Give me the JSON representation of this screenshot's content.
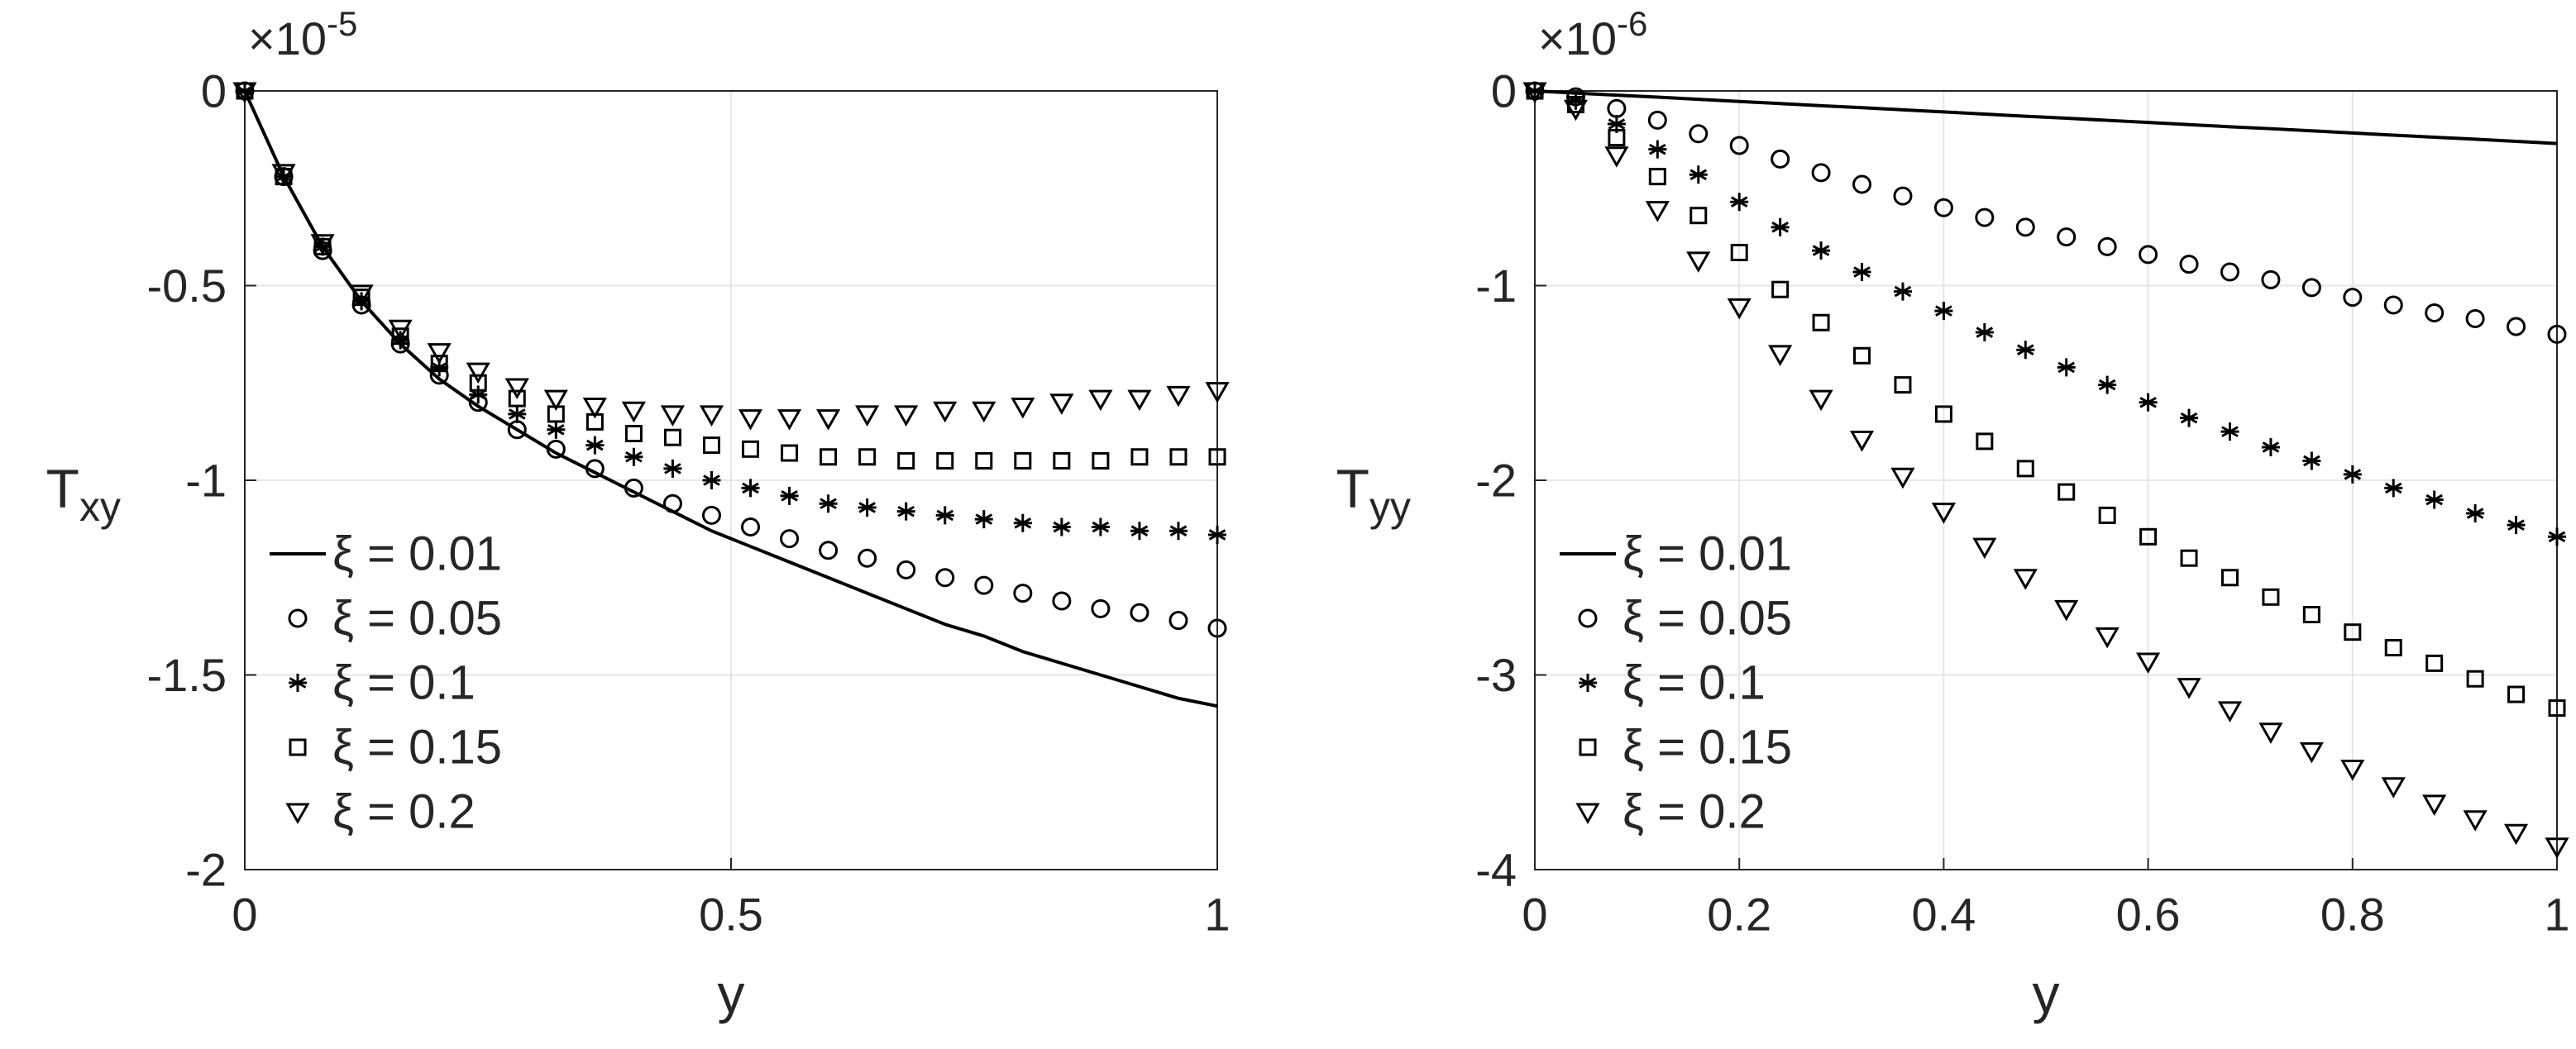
{
  "chart_data": [
    {
      "type": "scatter",
      "xlabel": "y",
      "ylabel": {
        "main": "T",
        "sub": "xy"
      },
      "multiplier": {
        "base": "×10",
        "exponent": "-5"
      },
      "xlim": [
        0,
        1
      ],
      "ylim": [
        -2,
        0
      ],
      "xticks": [
        0,
        0.5,
        1
      ],
      "yticks": [
        -2,
        -1.5,
        -1,
        -0.5,
        0
      ],
      "grid": true,
      "legend": "lower left",
      "x": [
        0,
        0.04,
        0.08,
        0.12,
        0.16,
        0.2,
        0.24,
        0.28,
        0.32,
        0.36,
        0.4,
        0.44,
        0.48,
        0.52,
        0.56,
        0.6,
        0.64,
        0.68,
        0.72,
        0.76,
        0.8,
        0.84,
        0.88,
        0.92,
        0.96,
        1
      ],
      "series": [
        {
          "name": "ξ = 0.01",
          "marker": "line",
          "color": "#000000",
          "values": [
            0,
            -0.22,
            -0.4,
            -0.54,
            -0.65,
            -0.74,
            -0.81,
            -0.87,
            -0.93,
            -0.98,
            -1.03,
            -1.08,
            -1.13,
            -1.17,
            -1.21,
            -1.25,
            -1.29,
            -1.33,
            -1.37,
            -1.4,
            -1.44,
            -1.47,
            -1.5,
            -1.53,
            -1.56,
            -1.58
          ]
        },
        {
          "name": "ξ = 0.05",
          "marker": "circle",
          "color": "#000000",
          "values": [
            0,
            -0.22,
            -0.41,
            -0.55,
            -0.65,
            -0.73,
            -0.8,
            -0.87,
            -0.92,
            -0.97,
            -1.02,
            -1.06,
            -1.09,
            -1.12,
            -1.15,
            -1.18,
            -1.2,
            -1.23,
            -1.25,
            -1.27,
            -1.29,
            -1.31,
            -1.33,
            -1.34,
            -1.36,
            -1.38
          ]
        },
        {
          "name": "ξ = 0.1",
          "marker": "star",
          "color": "#000000",
          "values": [
            0,
            -0.22,
            -0.4,
            -0.54,
            -0.64,
            -0.71,
            -0.78,
            -0.83,
            -0.87,
            -0.91,
            -0.94,
            -0.97,
            -1.0,
            -1.02,
            -1.04,
            -1.06,
            -1.07,
            -1.08,
            -1.09,
            -1.1,
            -1.11,
            -1.12,
            -1.12,
            -1.13,
            -1.13,
            -1.14
          ]
        },
        {
          "name": "ξ = 0.15",
          "marker": "square",
          "color": "#000000",
          "values": [
            0,
            -0.22,
            -0.4,
            -0.53,
            -0.63,
            -0.7,
            -0.75,
            -0.79,
            -0.83,
            -0.85,
            -0.88,
            -0.89,
            -0.91,
            -0.92,
            -0.93,
            -0.94,
            -0.94,
            -0.95,
            -0.95,
            -0.95,
            -0.95,
            -0.95,
            -0.95,
            -0.94,
            -0.94,
            -0.94
          ]
        },
        {
          "name": "ξ = 0.2",
          "marker": "triangle-down",
          "color": "#000000",
          "values": [
            0,
            -0.21,
            -0.39,
            -0.52,
            -0.61,
            -0.67,
            -0.72,
            -0.76,
            -0.79,
            -0.81,
            -0.82,
            -0.83,
            -0.83,
            -0.84,
            -0.84,
            -0.84,
            -0.83,
            -0.83,
            -0.82,
            -0.82,
            -0.81,
            -0.8,
            -0.79,
            -0.79,
            -0.78,
            -0.77
          ]
        }
      ]
    },
    {
      "type": "scatter",
      "xlabel": "y",
      "ylabel": {
        "main": "T",
        "sub": "yy"
      },
      "multiplier": {
        "base": "×10",
        "exponent": "-6"
      },
      "xlim": [
        0,
        1
      ],
      "ylim": [
        -4,
        0
      ],
      "xticks": [
        0,
        0.2,
        0.4,
        0.6,
        0.8,
        1
      ],
      "yticks": [
        -4,
        -3,
        -2,
        -1,
        0
      ],
      "grid": true,
      "legend": "lower left",
      "x": [
        0,
        0.04,
        0.08,
        0.12,
        0.16,
        0.2,
        0.24,
        0.28,
        0.32,
        0.36,
        0.4,
        0.44,
        0.48,
        0.52,
        0.56,
        0.6,
        0.64,
        0.68,
        0.72,
        0.76,
        0.8,
        0.84,
        0.88,
        0.92,
        0.96,
        1
      ],
      "series": [
        {
          "name": "ξ = 0.01",
          "marker": "line",
          "color": "#000000",
          "values": [
            0,
            -0.011,
            -0.022,
            -0.032,
            -0.043,
            -0.054,
            -0.065,
            -0.076,
            -0.086,
            -0.097,
            -0.108,
            -0.119,
            -0.13,
            -0.14,
            -0.151,
            -0.162,
            -0.173,
            -0.184,
            -0.194,
            -0.205,
            -0.216,
            -0.227,
            -0.238,
            -0.248,
            -0.259,
            -0.27
          ]
        },
        {
          "name": "ξ = 0.05",
          "marker": "circle",
          "color": "#000000",
          "values": [
            0,
            -0.03,
            -0.09,
            -0.15,
            -0.22,
            -0.28,
            -0.35,
            -0.42,
            -0.48,
            -0.54,
            -0.6,
            -0.65,
            -0.7,
            -0.75,
            -0.8,
            -0.84,
            -0.89,
            -0.93,
            -0.97,
            -1.01,
            -1.06,
            -1.1,
            -1.14,
            -1.17,
            -1.21,
            -1.25
          ]
        },
        {
          "name": "ξ = 0.1",
          "marker": "star",
          "color": "#000000",
          "values": [
            0,
            -0.05,
            -0.17,
            -0.3,
            -0.43,
            -0.57,
            -0.7,
            -0.82,
            -0.93,
            -1.03,
            -1.13,
            -1.24,
            -1.33,
            -1.42,
            -1.51,
            -1.6,
            -1.68,
            -1.75,
            -1.83,
            -1.9,
            -1.97,
            -2.04,
            -2.1,
            -2.17,
            -2.23,
            -2.29
          ]
        },
        {
          "name": "ξ = 0.15",
          "marker": "square",
          "color": "#000000",
          "values": [
            0,
            -0.07,
            -0.24,
            -0.44,
            -0.64,
            -0.83,
            -1.02,
            -1.19,
            -1.36,
            -1.51,
            -1.66,
            -1.8,
            -1.94,
            -2.06,
            -2.18,
            -2.29,
            -2.4,
            -2.5,
            -2.6,
            -2.69,
            -2.78,
            -2.86,
            -2.94,
            -3.02,
            -3.1,
            -3.17
          ]
        },
        {
          "name": "ξ = 0.2",
          "marker": "triangle-down",
          "color": "#000000",
          "values": [
            0,
            -0.09,
            -0.33,
            -0.61,
            -0.87,
            -1.11,
            -1.35,
            -1.58,
            -1.79,
            -1.98,
            -2.16,
            -2.34,
            -2.5,
            -2.66,
            -2.8,
            -2.93,
            -3.06,
            -3.18,
            -3.29,
            -3.39,
            -3.48,
            -3.57,
            -3.66,
            -3.74,
            -3.81,
            -3.88
          ]
        }
      ]
    }
  ]
}
